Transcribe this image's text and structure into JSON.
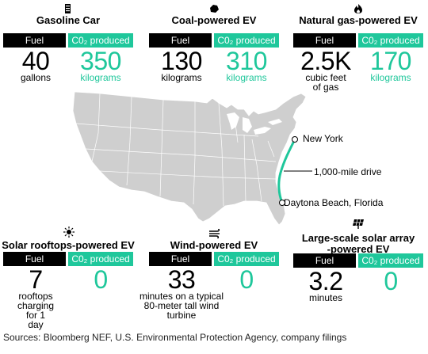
{
  "panels": [
    {
      "title": "Gasoline Car",
      "icon": "fuel-pump-icon",
      "fuel_label": "Fuel",
      "co2_label": "C0₂ produced",
      "fuel_value": "40",
      "fuel_unit": "gallons",
      "co2_value": "350",
      "co2_unit": "kilograms"
    },
    {
      "title": "Coal-powered EV",
      "icon": "coal-lump-icon",
      "fuel_label": "Fuel",
      "co2_label": "C0₂ produced",
      "fuel_value": "130",
      "fuel_unit": "kilograms",
      "co2_value": "310",
      "co2_unit": "kilograms"
    },
    {
      "title": "Natural gas-powered EV",
      "icon": "flame-icon",
      "fuel_label": "Fuel",
      "co2_label": "C0₂ produced",
      "fuel_value": "2.5K",
      "fuel_unit": "cubic feet of gas",
      "co2_value": "170",
      "co2_unit": "kilograms"
    },
    {
      "title": "Solar rooftops-powered EV",
      "icon": "sun-icon",
      "fuel_label": "Fuel",
      "co2_label": "C0₂ produced",
      "fuel_value": "7",
      "fuel_unit": "rooftops charging for 1 day",
      "co2_value": "0",
      "co2_unit": ""
    },
    {
      "title": "Wind-powered EV",
      "icon": "wind-icon",
      "fuel_label": "Fuel",
      "co2_label": "C0₂ produced",
      "fuel_value": "33",
      "fuel_unit": "minutes on a typical 80-meter tall wind turbine",
      "co2_value": "0",
      "co2_unit": ""
    },
    {
      "title": "Large-scale solar array -powered EV",
      "icon": "solar-panel-icon",
      "fuel_label": "Fuel",
      "co2_label": "C0₂ produced",
      "fuel_value": "3.2",
      "fuel_unit": "minutes",
      "co2_value": "0",
      "co2_unit": ""
    }
  ],
  "map": {
    "start_label": "New York",
    "route_label": "1,000-mile drive",
    "end_label": "Daytona Beach, Florida",
    "route_color": "#1fc79b"
  },
  "source": "Sources: Bloomberg NEF, U.S. Environmental Protection Agency, company filings",
  "colors": {
    "accent": "#1fc79b",
    "label_bg": "#000000"
  }
}
